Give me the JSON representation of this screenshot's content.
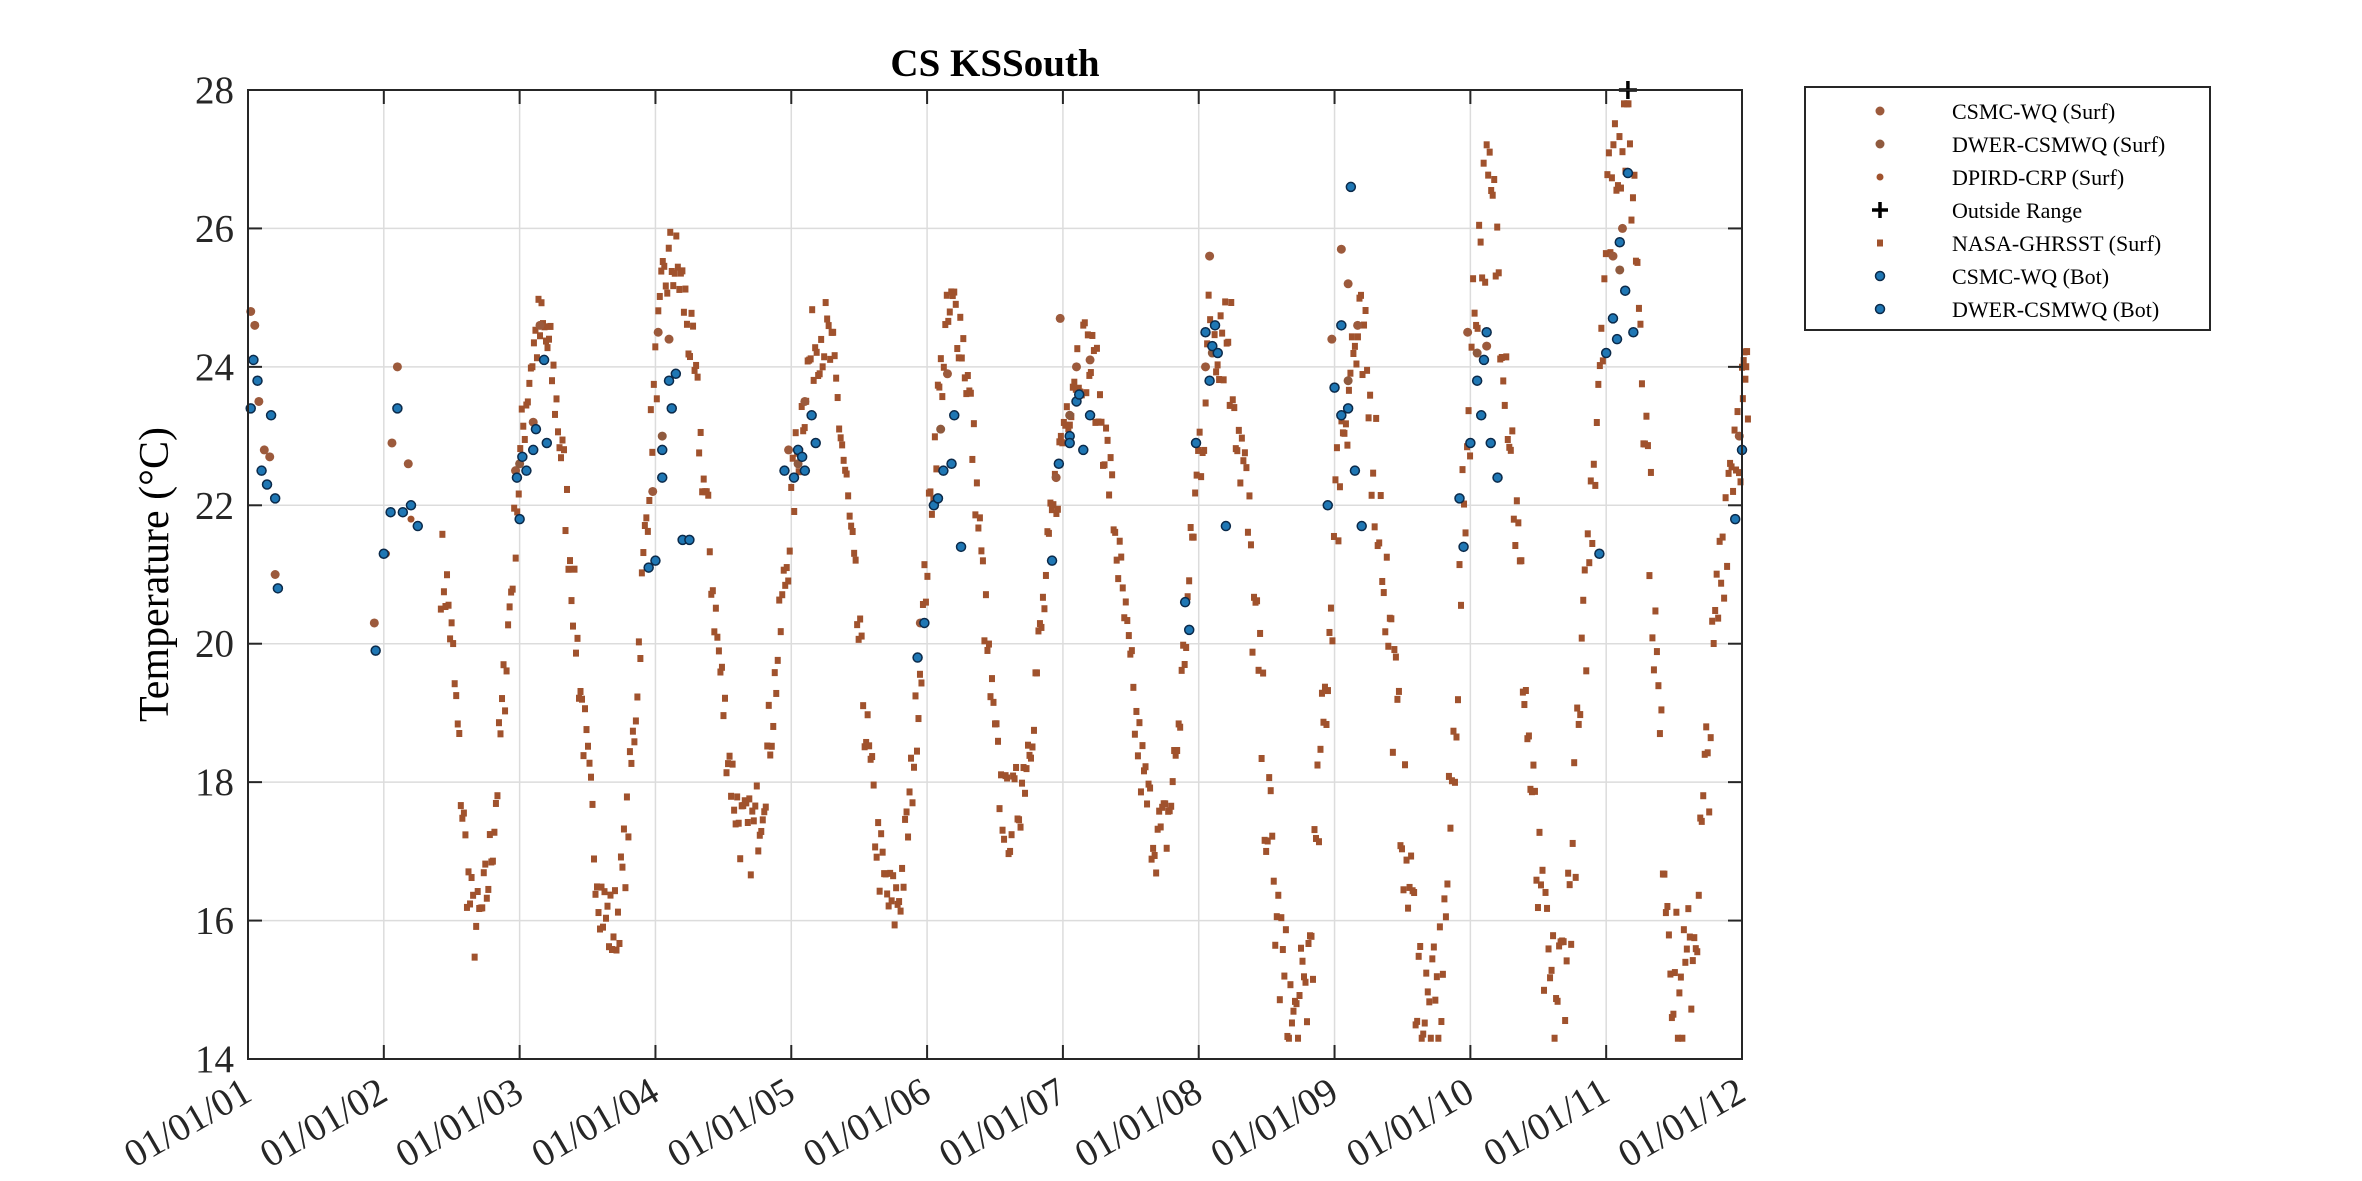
{
  "chart_data": {
    "type": "scatter",
    "title": "CS KSSouth",
    "xlabel": "",
    "ylabel": "Temperature (°C)",
    "x_tick_labels": [
      "01/01/01",
      "01/01/02",
      "01/01/03",
      "01/01/04",
      "01/01/05",
      "01/01/06",
      "01/01/07",
      "01/01/08",
      "01/01/09",
      "01/01/10",
      "01/01/11",
      "01/01/12"
    ],
    "x_range_years": [
      2001,
      2012
    ],
    "ylim": [
      14,
      28
    ],
    "y_ticks": [
      14,
      16,
      18,
      20,
      22,
      24,
      26,
      28
    ],
    "grid": true,
    "legend_position": "outside-top-right",
    "series": [
      {
        "name": "CSMC-WQ (Surf)",
        "marker": "dot",
        "color": "#9c5a3c",
        "points": [
          [
            2001.02,
            24.8
          ],
          [
            2001.05,
            24.6
          ],
          [
            2001.08,
            23.5
          ],
          [
            2001.12,
            22.8
          ],
          [
            2001.16,
            22.7
          ],
          [
            2001.2,
            21
          ],
          [
            2001.93,
            20.3
          ],
          [
            2002.06,
            22.9
          ],
          [
            2002.1,
            24
          ],
          [
            2002.18,
            22.6
          ],
          [
            2002.97,
            22.5
          ],
          [
            2003.1,
            23.2
          ],
          [
            2003.15,
            24.6
          ],
          [
            2003.98,
            22.2
          ],
          [
            2004.02,
            24.5
          ],
          [
            2004.1,
            24.4
          ],
          [
            2004.98,
            22.8
          ],
          [
            2005.1,
            23.5
          ],
          [
            2005.95,
            20.3
          ],
          [
            2006.05,
            22
          ],
          [
            2006.15,
            23.9
          ],
          [
            2006.95,
            22.4
          ],
          [
            2006.98,
            24.7
          ],
          [
            2007.1,
            24
          ],
          [
            2007.2,
            24.1
          ],
          [
            2008.05,
            24
          ],
          [
            2008.08,
            25.6
          ],
          [
            2008.98,
            24.4
          ],
          [
            2009.05,
            25.7
          ],
          [
            2009.1,
            25.2
          ],
          [
            2009.17,
            24.6
          ],
          [
            2009.98,
            24.5
          ],
          [
            2010.12,
            24.3
          ],
          [
            2011.05,
            25.6
          ],
          [
            2011.12,
            26
          ],
          [
            2011.98,
            23
          ]
        ]
      },
      {
        "name": "DWER-CSMWQ (Surf)",
        "marker": "dot",
        "color": "#8f5a3e",
        "points": [
          [
            2003.0,
            22.6
          ],
          [
            2004.05,
            23
          ],
          [
            2005.05,
            22.6
          ],
          [
            2006.1,
            23.1
          ],
          [
            2007.05,
            23.3
          ],
          [
            2008.1,
            24.2
          ],
          [
            2009.1,
            23.8
          ],
          [
            2010.05,
            24.2
          ],
          [
            2011.1,
            25.4
          ]
        ]
      },
      {
        "name": "DPIRD-CRP (Surf)",
        "marker": "dot-small",
        "color": "#a0522d",
        "points": [
          [
            2001.95,
            19.9
          ],
          [
            2002.02,
            21.3
          ],
          [
            2002.2,
            21.8
          ]
        ]
      },
      {
        "name": "Outside Range",
        "marker": "plus",
        "color": "#000000",
        "points": [
          [
            2011.16,
            28
          ]
        ]
      },
      {
        "name": "NASA-GHRSST (Surf)",
        "marker": "square",
        "color": "#a0522d",
        "annual_cycle": [
          {
            "year": 2002,
            "trough": [
              2002.68,
              15.9
            ],
            "peak": [
              2003.15,
              24.5
            ]
          },
          {
            "year": 2003,
            "trough": [
              2003.68,
              15.9
            ],
            "peak": [
              2004.12,
              25.5
            ]
          },
          {
            "year": 2004,
            "trough": [
              2004.68,
              17.2
            ],
            "peak": [
              2005.22,
              24.5
            ]
          },
          {
            "year": 2005,
            "trough": [
              2005.75,
              16.2
            ],
            "peak": [
              2006.2,
              24.8
            ]
          },
          {
            "year": 2006,
            "trough": [
              2006.6,
              17.5
            ],
            "peak": [
              2007.15,
              24.2
            ]
          },
          {
            "year": 2007,
            "trough": [
              2007.72,
              17.2
            ],
            "peak": [
              2008.15,
              24.8
            ]
          },
          {
            "year": 2008,
            "trough": [
              2008.72,
              14.4
            ],
            "peak": [
              2009.15,
              24.2
            ]
          },
          {
            "year": 2009,
            "trough": [
              2009.72,
              14.5
            ],
            "peak": [
              2010.12,
              26.3
            ]
          },
          {
            "year": 2010,
            "trough": [
              2010.62,
              14.9
            ],
            "peak": [
              2011.12,
              27.6
            ]
          },
          {
            "year": 2011,
            "trough": [
              2011.55,
              14.9
            ],
            "peak": [
              2012.05,
              23.5
            ]
          }
        ],
        "start": [
          2002.42,
          21.1
        ],
        "end": [
          2012.0,
          23.4
        ]
      },
      {
        "name": "CSMC-WQ (Bot)",
        "marker": "dot-outlined",
        "color": "#1f77b4",
        "points": [
          [
            2001.02,
            23.4
          ],
          [
            2001.04,
            24.1
          ],
          [
            2001.07,
            23.8
          ],
          [
            2001.1,
            22.5
          ],
          [
            2001.14,
            22.3
          ],
          [
            2001.17,
            23.3
          ],
          [
            2001.2,
            22.1
          ],
          [
            2001.22,
            20.8
          ],
          [
            2001.94,
            19.9
          ],
          [
            2002.0,
            21.3
          ],
          [
            2002.05,
            21.9
          ],
          [
            2002.1,
            23.4
          ],
          [
            2002.14,
            21.9
          ],
          [
            2002.2,
            22
          ],
          [
            2002.25,
            21.7
          ],
          [
            2002.98,
            22.4
          ],
          [
            2003.0,
            21.8
          ],
          [
            2003.05,
            22.5
          ],
          [
            2003.1,
            22.8
          ],
          [
            2003.18,
            24.1
          ],
          [
            2003.2,
            22.9
          ],
          [
            2003.95,
            21.1
          ],
          [
            2004.0,
            21.2
          ],
          [
            2004.05,
            22.4
          ],
          [
            2004.1,
            23.8
          ],
          [
            2004.15,
            23.9
          ],
          [
            2004.2,
            21.5
          ],
          [
            2004.25,
            21.5
          ],
          [
            2004.95,
            22.5
          ],
          [
            2005.05,
            22.8
          ],
          [
            2005.1,
            22.5
          ],
          [
            2005.15,
            23.3
          ],
          [
            2005.18,
            22.9
          ],
          [
            2005.93,
            19.8
          ],
          [
            2005.98,
            20.3
          ],
          [
            2006.05,
            22
          ],
          [
            2006.12,
            22.5
          ],
          [
            2006.2,
            23.3
          ],
          [
            2006.25,
            21.4
          ],
          [
            2006.92,
            21.2
          ],
          [
            2006.97,
            22.6
          ],
          [
            2007.05,
            23
          ],
          [
            2007.1,
            23.5
          ],
          [
            2007.15,
            22.8
          ],
          [
            2007.2,
            23.3
          ],
          [
            2007.9,
            20.6
          ],
          [
            2007.93,
            20.2
          ],
          [
            2007.98,
            22.9
          ],
          [
            2008.05,
            24.5
          ],
          [
            2008.1,
            24.3
          ],
          [
            2008.14,
            24.2
          ],
          [
            2008.2,
            21.7
          ],
          [
            2008.95,
            22
          ],
          [
            2009.0,
            23.7
          ],
          [
            2009.05,
            24.6
          ],
          [
            2009.1,
            23.4
          ],
          [
            2009.15,
            22.5
          ],
          [
            2009.2,
            21.7
          ],
          [
            2009.92,
            22.1
          ],
          [
            2009.95,
            21.4
          ],
          [
            2010.0,
            22.9
          ],
          [
            2010.05,
            23.8
          ],
          [
            2010.1,
            24.1
          ],
          [
            2010.15,
            22.9
          ],
          [
            2010.2,
            22.4
          ],
          [
            2010.95,
            21.3
          ],
          [
            2011.0,
            24.2
          ],
          [
            2011.05,
            24.7
          ],
          [
            2011.1,
            25.8
          ],
          [
            2011.14,
            25.1
          ],
          [
            2011.2,
            24.5
          ],
          [
            2011.95,
            21.8
          ],
          [
            2012.0,
            22.8
          ]
        ]
      },
      {
        "name": "DWER-CSMWQ (Bot)",
        "marker": "dot-outlined",
        "color": "#1f77b4",
        "points": [
          [
            2003.02,
            22.7
          ],
          [
            2003.12,
            23.1
          ],
          [
            2004.05,
            22.8
          ],
          [
            2004.12,
            23.4
          ],
          [
            2005.02,
            22.4
          ],
          [
            2005.08,
            22.7
          ],
          [
            2006.08,
            22.1
          ],
          [
            2006.18,
            22.6
          ],
          [
            2007.05,
            22.9
          ],
          [
            2007.12,
            23.6
          ],
          [
            2008.08,
            23.8
          ],
          [
            2008.12,
            24.6
          ],
          [
            2009.05,
            23.3
          ],
          [
            2009.12,
            26.6
          ],
          [
            2010.08,
            23.3
          ],
          [
            2010.12,
            24.5
          ],
          [
            2011.08,
            24.4
          ],
          [
            2011.16,
            26.8
          ]
        ]
      }
    ]
  }
}
